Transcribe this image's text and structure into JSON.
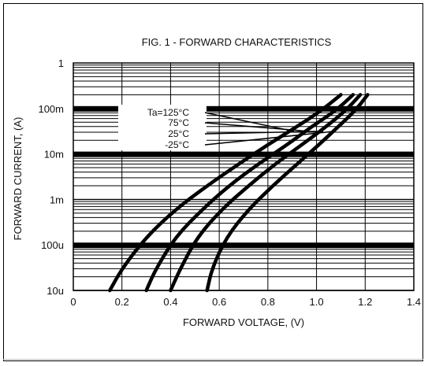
{
  "chart_data": {
    "type": "line",
    "title": "FIG. 1 - FORWARD CHARACTERISTICS",
    "xlabel": "FORWARD VOLTAGE, (V)",
    "ylabel": "FORWARD CURRENT, (A)",
    "x_scale": "linear",
    "y_scale": "log",
    "xlim": [
      0,
      1.4
    ],
    "ylim": [
      1e-05,
      1
    ],
    "x_ticks": [
      {
        "value": 0,
        "label": "0"
      },
      {
        "value": 0.2,
        "label": "0.2"
      },
      {
        "value": 0.4,
        "label": "0.4"
      },
      {
        "value": 0.6,
        "label": "0.6"
      },
      {
        "value": 0.8,
        "label": "0.8"
      },
      {
        "value": 1.0,
        "label": "1.0"
      },
      {
        "value": 1.2,
        "label": "1.2"
      },
      {
        "value": 1.4,
        "label": "1.4"
      }
    ],
    "y_ticks": [
      {
        "value": 1,
        "label": "1"
      },
      {
        "value": 0.1,
        "label": "100m"
      },
      {
        "value": 0.01,
        "label": "10m"
      },
      {
        "value": 0.001,
        "label": "1m"
      },
      {
        "value": 0.0001,
        "label": "100u"
      },
      {
        "value": 1e-05,
        "label": "10u"
      }
    ],
    "grid": true,
    "legend_title": "Ta=125°C",
    "series": [
      {
        "name": "Ta=125°C",
        "x": [
          0.15,
          0.2,
          0.3,
          0.42,
          0.55,
          0.68,
          0.8,
          0.92,
          1.02,
          1.1
        ],
        "y": [
          1e-05,
          3e-05,
          0.00015,
          0.0006,
          0.002,
          0.006,
          0.016,
          0.04,
          0.09,
          0.2
        ]
      },
      {
        "name": "75°C",
        "x": [
          0.3,
          0.34,
          0.42,
          0.53,
          0.64,
          0.76,
          0.88,
          0.98,
          1.08,
          1.15
        ],
        "y": [
          1e-05,
          3e-05,
          0.00015,
          0.0006,
          0.002,
          0.006,
          0.016,
          0.04,
          0.09,
          0.2
        ]
      },
      {
        "name": "25°C",
        "x": [
          0.4,
          0.44,
          0.51,
          0.61,
          0.72,
          0.83,
          0.94,
          1.04,
          1.12,
          1.18
        ],
        "y": [
          1e-05,
          3e-05,
          0.00015,
          0.0006,
          0.002,
          0.006,
          0.016,
          0.04,
          0.09,
          0.2
        ]
      },
      {
        "name": "-25°C",
        "x": [
          0.55,
          0.57,
          0.63,
          0.72,
          0.82,
          0.92,
          1.01,
          1.09,
          1.16,
          1.21
        ],
        "y": [
          1e-05,
          3e-05,
          0.00015,
          0.0006,
          0.002,
          0.006,
          0.016,
          0.04,
          0.09,
          0.2
        ]
      }
    ]
  }
}
